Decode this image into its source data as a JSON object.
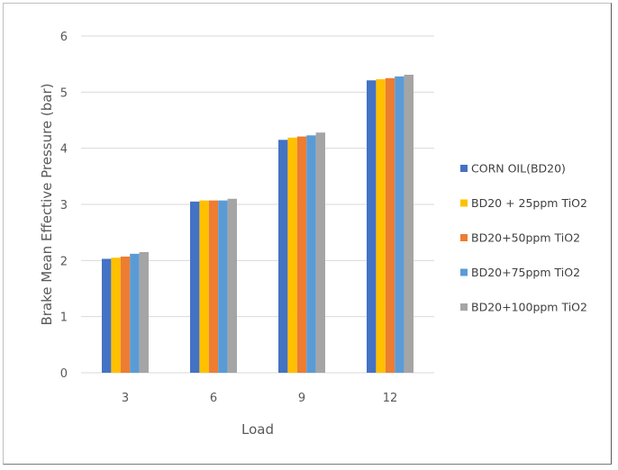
{
  "chart_data": {
    "type": "bar",
    "xlabel": "Load",
    "ylabel": "Brake Mean Effective Pressure (bar)",
    "categories": [
      "3",
      "6",
      "9",
      "12"
    ],
    "ylim": [
      0,
      6
    ],
    "yticks": [
      "0",
      "1",
      "2",
      "3",
      "4",
      "5",
      "6"
    ],
    "grid": true,
    "legend_position": "right",
    "series": [
      {
        "name": "CORN OIL(BD20)",
        "color": "#4472c4",
        "values": [
          2.03,
          3.05,
          4.15,
          5.21
        ]
      },
      {
        "name": "BD20 + 25ppm TiO2",
        "color": "#ffc000",
        "values": [
          2.05,
          3.07,
          4.19,
          5.23
        ]
      },
      {
        "name": "BD20+50ppm TiO2",
        "color": "#ed7d31",
        "values": [
          2.07,
          3.07,
          4.21,
          5.25
        ]
      },
      {
        "name": "BD20+75ppm TiO2",
        "color": "#5b9bd5",
        "values": [
          2.12,
          3.07,
          4.23,
          5.28
        ]
      },
      {
        "name": "BD20+100ppm TiO2",
        "color": "#a5a5a5",
        "values": [
          2.15,
          3.1,
          4.28,
          5.31
        ]
      }
    ]
  }
}
